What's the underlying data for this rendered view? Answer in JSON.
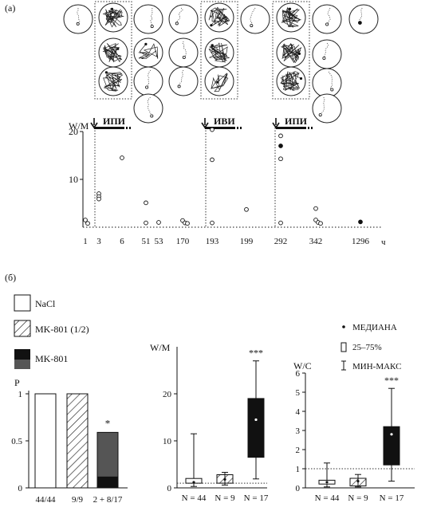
{
  "panel_a": {
    "label": "(а)",
    "ylabel": "W/M",
    "x_unit": "ч",
    "y_ticks": [
      "20",
      "10"
    ],
    "x_ticks": [
      "1",
      "3",
      "6",
      "51",
      "53",
      "170",
      "193",
      "199",
      "292",
      "342",
      "1296"
    ],
    "markers": [
      "ИПИ",
      "ИВИ",
      "ИПИ"
    ]
  },
  "panel_b": {
    "label": "(б)",
    "legend": [
      "NaCl",
      "MK-801 (1/2)",
      "MK-801"
    ],
    "bar_ylabel": "P",
    "bar_yticks": [
      "1",
      "0.5",
      "0"
    ],
    "bar_xlabels": [
      "44/44",
      "9/9",
      "2 + 8/17"
    ],
    "bar_star": "*",
    "box1_ylabel": "W/M",
    "box1_yticks": [
      "20",
      "10",
      "0"
    ],
    "box2_ylabel": "W/C",
    "box2_yticks": [
      "6",
      "5",
      "4",
      "3",
      "2",
      "1",
      "0"
    ],
    "box_xlabels": [
      "N = 44",
      "N = 9",
      "N = 17"
    ],
    "box_star": "***",
    "box_legend": [
      "МЕДИАНА",
      "25–75%",
      "МИН-МАКС"
    ]
  },
  "chart_data": [
    {
      "type": "scatter",
      "panel": "(а)",
      "ylabel": "W/M",
      "ylim": [
        0,
        22
      ],
      "x_categories": [
        "1",
        "3",
        "6",
        "51",
        "53",
        "170",
        "193",
        "199",
        "292",
        "342",
        "1296"
      ],
      "points": [
        {
          "x": "1",
          "y": 1.5
        },
        {
          "x": "1",
          "y": 0.8
        },
        {
          "x": "3",
          "y": 7.0
        },
        {
          "x": "3",
          "y": 6.4
        },
        {
          "x": "3",
          "y": 5.9
        },
        {
          "x": "6",
          "y": 14.5
        },
        {
          "x": "51",
          "y": 5.1
        },
        {
          "x": "51",
          "y": 0.9
        },
        {
          "x": "53",
          "y": 1.0
        },
        {
          "x": "170",
          "y": 1.4
        },
        {
          "x": "170",
          "y": 0.9
        },
        {
          "x": "170",
          "y": 0.8
        },
        {
          "x": "193",
          "y": 0.9
        },
        {
          "x": "193",
          "y": 20.4
        },
        {
          "x": "193",
          "y": 14.1
        },
        {
          "x": "199",
          "y": 3.7
        },
        {
          "x": "292",
          "y": 0.9
        },
        {
          "x": "292",
          "y": 19.1
        },
        {
          "x": "292",
          "y": 17.0,
          "filled": true
        },
        {
          "x": "292",
          "y": 14.3
        },
        {
          "x": "342",
          "y": 3.9
        },
        {
          "x": "342",
          "y": 1.5
        },
        {
          "x": "342",
          "y": 1.0
        },
        {
          "x": "342",
          "y": 0.8
        },
        {
          "x": "1296",
          "y": 1.1,
          "filled": true
        }
      ],
      "annotations": [
        "ИПИ",
        "ИВИ",
        "ИПИ"
      ]
    },
    {
      "type": "bar",
      "panel": "(б)",
      "ylabel": "P",
      "ylim": [
        0,
        1
      ],
      "categories": [
        "44/44",
        "9/9",
        "2 + 8/17"
      ],
      "values": [
        1.0,
        1.0,
        0.59
      ],
      "legend": [
        "NaCl",
        "MK-801 (1/2)",
        "MK-801"
      ]
    },
    {
      "type": "box",
      "ylabel": "W/M",
      "ylim": [
        0,
        30
      ],
      "categories": [
        "N = 44",
        "N = 9",
        "N = 17"
      ],
      "boxes": [
        {
          "min": 0.3,
          "q1": 1.0,
          "median": 1.2,
          "q3": 2.0,
          "max": 11.5
        },
        {
          "min": 0.6,
          "q1": 1.0,
          "median": 1.8,
          "q3": 2.8,
          "max": 3.3
        },
        {
          "min": 1.9,
          "q1": 6.5,
          "median": 14.5,
          "q3": 19.0,
          "max": 27.0
        }
      ]
    },
    {
      "type": "box",
      "ylabel": "W/C",
      "ylim": [
        0,
        6
      ],
      "categories": [
        "N = 44",
        "N = 9",
        "N = 17"
      ],
      "boxes": [
        {
          "min": 0.05,
          "q1": 0.2,
          "median": 0.3,
          "q3": 0.4,
          "max": 1.3
        },
        {
          "min": 0.05,
          "q1": 0.1,
          "median": 0.35,
          "q3": 0.5,
          "max": 0.7
        },
        {
          "min": 0.35,
          "q1": 1.2,
          "median": 2.8,
          "q3": 3.2,
          "max": 5.2
        }
      ]
    }
  ]
}
